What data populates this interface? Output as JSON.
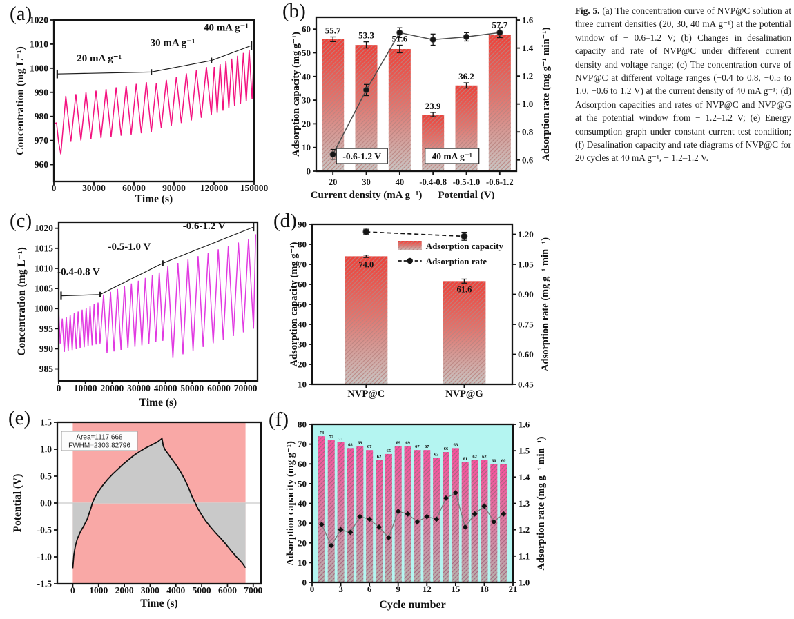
{
  "figure": {
    "caption_label": "Fig. 5.",
    "caption_text": " (a) The concentration curve of NVP@C solution at three current densities (20, 30, 40 mA g⁻¹) at the potential window of − 0.6–1.2 V; (b) Changes in desalination capacity and rate of NVP@C under different current density and voltage range; (c) The concentration curve of NVP@C at different voltage ranges (−0.4 to 0.8, −0.5 to 1.0, −0.6 to 1.2 V) at the current density of 40 mA g⁻¹; (d) Adsorption capacities and rates of NVP@C and NVP@G at the potential window from − 1.2–1.2 V; (e) Energy consumption graph under constant current test condition; (f) Desalination capacity and rate diagrams of NVP@C for 20 cycles at 40 mA g⁻¹, − 1.2–1.2 V."
  },
  "panels": {
    "a": {
      "label": "(a)"
    },
    "b": {
      "label": "(b)"
    },
    "c": {
      "label": "(c)"
    },
    "d": {
      "label": "(d)"
    },
    "e": {
      "label": "(e)"
    },
    "f": {
      "label": "(f)"
    }
  },
  "chart_data": [
    {
      "panel": "a",
      "type": "line",
      "xlabel": "Time (s)",
      "ylabel": "Concentration (mg L⁻¹)",
      "xlim": [
        0,
        150000
      ],
      "ylim": [
        953,
        1020
      ],
      "xticks": [
        0,
        30000,
        60000,
        90000,
        120000,
        150000
      ],
      "xtick_labels": [
        "0",
        "30000",
        "60000",
        "90000",
        "120000",
        "150000"
      ],
      "yticks": [
        960,
        970,
        980,
        990,
        1000,
        1010,
        1020
      ],
      "ytick_labels": [
        "960",
        "970",
        "980",
        "990",
        "1000",
        "1010",
        "1020"
      ],
      "line_color": "#f3127f",
      "annotations": [
        {
          "text": "20 mA g⁻¹",
          "x": 34000,
          "y": 1002.8
        },
        {
          "text": "30 mA g⁻¹",
          "x": 89000,
          "y": 1009.2
        },
        {
          "text": "40 mA g⁻¹",
          "x": 129000,
          "y": 1015.6
        }
      ],
      "guide": {
        "points": [
          [
            2500,
            997.6
          ],
          [
            73000,
            998.4
          ],
          [
            118000,
            1003.2
          ],
          [
            148000,
            1009.4
          ]
        ],
        "tick_half": 1.2
      },
      "zigzag_segments": [
        {
          "pre": [
            [
              0,
              977
            ],
            [
              2000,
              977.3
            ],
            [
              3500,
              969.5
            ],
            [
              5200,
              964.3
            ]
          ],
          "t0": 5200,
          "t1": 73000,
          "cycles": 9,
          "peaks": [
            988.5,
            994.2
          ],
          "troughs": [
            969,
            973.5
          ]
        },
        {
          "t0": 73000,
          "t1": 118000,
          "cycles": 6,
          "peaks": [
            993.8,
            1000.5
          ],
          "troughs": [
            974,
            980.5
          ]
        },
        {
          "t0": 118000,
          "t1": 148500,
          "cycles": 7,
          "peaks": [
            1000.5,
            1007.5
          ],
          "troughs": [
            980.5,
            987.2
          ],
          "post": [
            [
              150000,
              1007
            ]
          ]
        }
      ]
    },
    {
      "panel": "b",
      "type": "bar+line",
      "categories": [
        "20",
        "30",
        "40",
        "-0.4-0.8",
        "-0.5-1.0",
        "-0.6-1.2"
      ],
      "series": [
        {
          "name": "Adsorption capacity",
          "axis": "left",
          "values": [
            55.7,
            53.3,
            51.6,
            23.9,
            36.2,
            57.7
          ],
          "errors": [
            1.0,
            1.3,
            1.6,
            0.9,
            1.1,
            1.3
          ]
        },
        {
          "name": "Adsorption rate",
          "axis": "right",
          "values": [
            0.64,
            1.1,
            1.51,
            1.46,
            1.48,
            1.51
          ],
          "errors": [
            0.035,
            0.04,
            0.035,
            0.04,
            0.03,
            0.035
          ]
        }
      ],
      "bar_value_labels": [
        "55.7",
        "53.3",
        "51.6",
        "23.9",
        "36.2",
        "57.7"
      ],
      "ylabel_left": "Adsorption capacity (mg g⁻¹)",
      "ylabel_right": "Adsorption rate (mg g⁻¹ min⁻¹)",
      "xlabel_left": "Current density (mA g⁻¹)",
      "xlabel_right": "Potential (V)",
      "ylim_left": [
        0,
        65
      ],
      "yticks_left": [
        0,
        10,
        20,
        30,
        40,
        50,
        60
      ],
      "ytick_labels_left": [
        "0",
        "10",
        "20",
        "30",
        "40",
        "50",
        "60"
      ],
      "ylim_right": [
        0.52,
        1.62
      ],
      "yticks_right": [
        0.6,
        0.8,
        1.0,
        1.2,
        1.4,
        1.6
      ],
      "ytick_labels_right": [
        "0.6",
        "0.8",
        "1.0",
        "1.2",
        "1.4",
        "1.6"
      ],
      "boxed_annotations": [
        {
          "text": "-0.6-1.2 V",
          "ci": 0.87,
          "y": 6.4,
          "w": 74
        },
        {
          "text": "40 mA g⁻¹",
          "ci": 3.57,
          "y": 6.4,
          "w": 78
        }
      ],
      "bar_gradient": [
        [
          "0%",
          "#ee4038"
        ],
        [
          "45%",
          "#e2736c"
        ],
        [
          "100%",
          "#c8c6c4"
        ]
      ],
      "hatch_color": "#bb8480"
    },
    {
      "panel": "c",
      "type": "line",
      "xlabel": "Time (s)",
      "ylabel": "Concentration (mg L⁻¹)",
      "xlim": [
        0,
        74500
      ],
      "ylim": [
        982,
        1021.5
      ],
      "xticks": [
        0,
        10000,
        20000,
        30000,
        40000,
        50000,
        60000,
        70000
      ],
      "xtick_labels": [
        "0",
        "10000",
        "20000",
        "30000",
        "40000",
        "50000",
        "60000",
        "70000"
      ],
      "yticks": [
        985,
        990,
        995,
        1000,
        1005,
        1010,
        1015,
        1020
      ],
      "ytick_labels": [
        "985",
        "990",
        "995",
        "1000",
        "1005",
        "1010",
        "1015",
        "1020"
      ],
      "line_color": "#e13ae1",
      "annotations": [
        {
          "text": "-0.4-0.8 V",
          "x": 7500,
          "y": 1008.4
        },
        {
          "text": "-0.5-1.0 V",
          "x": 26500,
          "y": 1014.6
        },
        {
          "text": "-0.6-1.2 V",
          "x": 54500,
          "y": 1019.8
        }
      ],
      "guide": {
        "points": [
          [
            900,
            1003.2
          ],
          [
            15500,
            1003.5
          ],
          [
            39000,
            1011.3
          ],
          [
            73000,
            1020.3
          ]
        ],
        "tick_half": 0.7
      },
      "zigzag_segments": [
        {
          "pre": [
            [
              0,
              999.5
            ],
            [
              600,
              991.3
            ]
          ],
          "t0": 600,
          "t1": 15500,
          "cycles": 10,
          "peaks": [
            997.5,
            1001.5
          ],
          "troughs": [
            989,
            991.3
          ]
        },
        {
          "t0": 15500,
          "t1": 39000,
          "cycles": 9,
          "peaks": [
            1003.5,
            1009
          ],
          "troughs": [
            988.6,
            992
          ]
        },
        {
          "t0": 39000,
          "t1": 73000,
          "cycles": 9,
          "peaks": [
            1010.5,
            1017.3
          ],
          "troughs": [
            986.8,
            995
          ],
          "post": [
            [
              73800,
              1018.5
            ]
          ]
        }
      ]
    },
    {
      "panel": "d",
      "type": "bar+line",
      "categories": [
        "NVP@C",
        "NVP@G"
      ],
      "series": [
        {
          "name": "Adsorption capacity",
          "axis": "left",
          "values": [
            74.0,
            61.6
          ],
          "errors": [
            0.6,
            1.0
          ]
        },
        {
          "name": "Adsorption rate",
          "axis": "right",
          "values": [
            1.212,
            1.19
          ],
          "errors": [
            0.013,
            0.02
          ]
        }
      ],
      "bar_value_labels": [
        "74.0",
        "61.6"
      ],
      "legend": [
        {
          "label": "Adsorption capacity",
          "swatch": "bar"
        },
        {
          "label": "Adsorption rate",
          "swatch": "line"
        }
      ],
      "ylabel_left": "Adsorption capacity (mg g⁻¹)",
      "ylabel_right": "Adsorption rate (mg g⁻¹ min⁻¹)",
      "ylim_left": [
        10,
        90
      ],
      "yticks_left": [
        10,
        20,
        30,
        40,
        50,
        60,
        70,
        80,
        90
      ],
      "ytick_labels_left": [
        "10",
        "20",
        "30",
        "40",
        "50",
        "60",
        "70",
        "80",
        "90"
      ],
      "ylim_right": [
        0.45,
        1.25
      ],
      "yticks_right": [
        0.45,
        0.6,
        0.75,
        0.9,
        1.05,
        1.2
      ],
      "ytick_labels_right": [
        "0.45",
        "0.60",
        "0.75",
        "0.90",
        "1.05",
        "1.20"
      ],
      "bar_gradient": [
        [
          "0%",
          "#ee4038"
        ],
        [
          "45%",
          "#e2736c"
        ],
        [
          "100%",
          "#c8c6c4"
        ]
      ],
      "hatch_color": "#bb8480"
    },
    {
      "panel": "e",
      "type": "area+line",
      "xlabel": "Time (s)",
      "ylabel": "Potential (V)",
      "xlim": [
        -600,
        7300
      ],
      "ylim": [
        -1.5,
        1.5
      ],
      "xticks": [
        0,
        1000,
        2000,
        3000,
        4000,
        5000,
        6000,
        7000
      ],
      "xtick_labels": [
        "0",
        "1000",
        "2000",
        "3000",
        "4000",
        "5000",
        "6000",
        "7000"
      ],
      "yticks": [
        -1.5,
        -1.0,
        -0.5,
        0.0,
        0.5,
        1.0,
        1.5
      ],
      "ytick_labels": [
        "-1.5",
        "-1.0",
        "-0.5",
        "0.0",
        "0.5",
        "1.0",
        "1.5"
      ],
      "band": {
        "x0": 0,
        "x1": 6700,
        "color": "#f9a8a6"
      },
      "area_fill": "#c9c9c9",
      "line_color": "#0f0f0f",
      "annotation_box": {
        "lines": [
          "Area=1117.668",
          "FWHM=2303.82796"
        ]
      },
      "points": [
        [
          0,
          -1.21
        ],
        [
          40,
          -0.97
        ],
        [
          100,
          -0.8
        ],
        [
          180,
          -0.66
        ],
        [
          300,
          -0.53
        ],
        [
          430,
          -0.42
        ],
        [
          560,
          -0.3
        ],
        [
          700,
          -0.1
        ],
        [
          760,
          0.0
        ],
        [
          850,
          0.1
        ],
        [
          1000,
          0.22
        ],
        [
          1150,
          0.32
        ],
        [
          1350,
          0.44
        ],
        [
          1550,
          0.54
        ],
        [
          1750,
          0.63
        ],
        [
          1950,
          0.72
        ],
        [
          2150,
          0.8
        ],
        [
          2350,
          0.88
        ],
        [
          2600,
          0.96
        ],
        [
          2850,
          1.03
        ],
        [
          3100,
          1.09
        ],
        [
          3300,
          1.14
        ],
        [
          3460,
          1.2
        ],
        [
          3510,
          1.06
        ],
        [
          3580,
          0.99
        ],
        [
          3720,
          0.9
        ],
        [
          3870,
          0.8
        ],
        [
          4020,
          0.7
        ],
        [
          4170,
          0.59
        ],
        [
          4320,
          0.46
        ],
        [
          4470,
          0.31
        ],
        [
          4620,
          0.13
        ],
        [
          4750,
          0.0
        ],
        [
          4850,
          -0.1
        ],
        [
          5000,
          -0.22
        ],
        [
          5150,
          -0.33
        ],
        [
          5350,
          -0.45
        ],
        [
          5550,
          -0.56
        ],
        [
          5750,
          -0.66
        ],
        [
          5950,
          -0.77
        ],
        [
          6150,
          -0.89
        ],
        [
          6350,
          -1.0
        ],
        [
          6550,
          -1.1
        ],
        [
          6700,
          -1.2
        ]
      ]
    },
    {
      "panel": "f",
      "type": "bar+line",
      "xlabel": "Cycle number",
      "ylabel_left": "Adsorption capacity (mg g⁻¹)",
      "ylabel_right": "Adsorption rate (mg g⁻¹ min⁻¹)",
      "cycles": [
        1,
        2,
        3,
        4,
        5,
        6,
        7,
        8,
        9,
        10,
        11,
        12,
        13,
        14,
        15,
        16,
        17,
        18,
        19,
        20
      ],
      "series": [
        {
          "name": "Adsorption capacity",
          "axis": "left",
          "values": [
            74,
            72,
            71,
            68,
            69,
            67,
            62,
            65,
            69,
            69,
            67,
            67,
            63,
            66,
            68,
            61,
            62,
            62,
            60,
            60
          ]
        },
        {
          "name": "Adsorption rate",
          "axis": "right",
          "values": [
            1.22,
            1.14,
            1.2,
            1.19,
            1.25,
            1.24,
            1.21,
            1.17,
            1.27,
            1.26,
            1.23,
            1.25,
            1.24,
            1.32,
            1.34,
            1.21,
            1.26,
            1.29,
            1.23,
            1.26
          ]
        }
      ],
      "bar_value_labels": [
        "74",
        "72",
        "71",
        "68",
        "69",
        "67",
        "62",
        "65",
        "69",
        "69",
        "67",
        "67",
        "63",
        "66",
        "68",
        "61",
        "62",
        "62",
        "60",
        "60"
      ],
      "xlim": [
        0,
        21
      ],
      "xticks": [
        0,
        3,
        6,
        9,
        12,
        15,
        18,
        21
      ],
      "xtick_labels": [
        "0",
        "3",
        "6",
        "9",
        "12",
        "15",
        "18",
        "21"
      ],
      "ylim_left": [
        0,
        80
      ],
      "yticks_left": [
        0,
        10,
        20,
        30,
        40,
        50,
        60,
        70,
        80
      ],
      "ytick_labels_left": [
        "0",
        "10",
        "20",
        "30",
        "40",
        "50",
        "60",
        "70",
        "80"
      ],
      "ylim_right": [
        1.0,
        1.6
      ],
      "yticks_right": [
        1.0,
        1.1,
        1.2,
        1.3,
        1.4,
        1.5,
        1.6
      ],
      "ytick_labels_right": [
        "1.0",
        "1.1",
        "1.2",
        "1.3",
        "1.4",
        "1.5",
        "1.6"
      ],
      "plot_bg": "#b4f5f1",
      "bar_gradient": [
        [
          "0%",
          "#f8519e"
        ],
        [
          "50%",
          "#dd7ba2"
        ],
        [
          "100%",
          "#b5b3ad"
        ]
      ],
      "hatch_color": "#a4607c"
    }
  ]
}
